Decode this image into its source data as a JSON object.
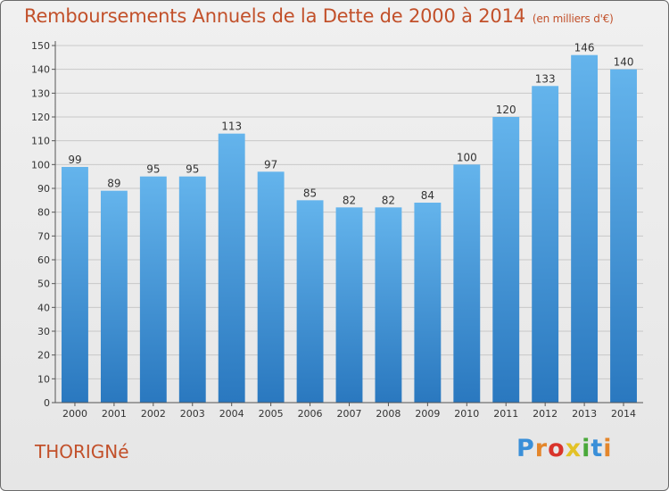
{
  "header": {
    "title": "Remboursements Annuels de la Dette de 2000 à 2014",
    "subtitle": "(en milliers d'€)"
  },
  "footer": {
    "commune": "THORIGNé",
    "logo_text": "Proxiti",
    "logo_colors": [
      "#3a8fd8",
      "#e4862b",
      "#d9342b",
      "#e3c227",
      "#4aa93a",
      "#3a8fd8",
      "#e4862b"
    ]
  },
  "colors": {
    "bar_top": "#64b4ec",
    "bar_bottom": "#2a78bf",
    "grid": "#c8c8c8",
    "axis": "#555555",
    "title": "#c2502a"
  },
  "chart_data": {
    "type": "bar",
    "title": "Remboursements Annuels de la Dette de 2000 à 2014",
    "xlabel": "",
    "ylabel": "",
    "categories": [
      "2000",
      "2001",
      "2002",
      "2003",
      "2004",
      "2005",
      "2006",
      "2007",
      "2008",
      "2009",
      "2010",
      "2011",
      "2012",
      "2013",
      "2014"
    ],
    "values": [
      99,
      89,
      95,
      95,
      113,
      97,
      85,
      82,
      82,
      84,
      100,
      120,
      133,
      146,
      140
    ],
    "ylim": [
      0,
      150
    ],
    "yticks": [
      0,
      10,
      20,
      30,
      40,
      50,
      60,
      70,
      80,
      90,
      100,
      110,
      120,
      130,
      140,
      150
    ],
    "grid": true,
    "legend": "none"
  }
}
